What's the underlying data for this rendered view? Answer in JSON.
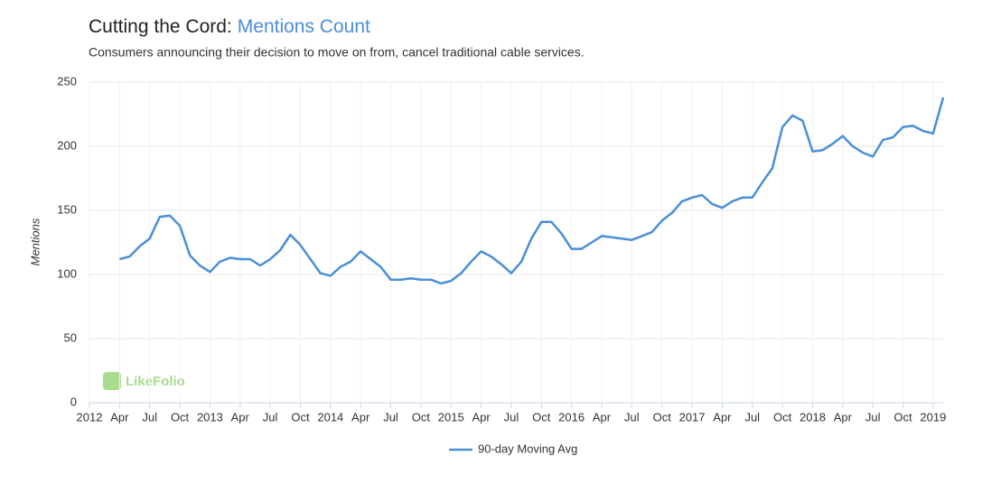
{
  "chart_data": {
    "type": "line",
    "title": "Cutting the Cord:",
    "title_highlight": "Mentions Count",
    "subtitle": "Consumers announcing their decision to move on from, cancel traditional cable services.",
    "y_label": "Mentions",
    "watermark": "LikeFolio",
    "x": [
      "2012-04",
      "2012-05",
      "2012-06",
      "2012-07",
      "2012-08",
      "2012-09",
      "2012-10",
      "2012-11",
      "2012-12",
      "2013-01",
      "2013-02",
      "2013-03",
      "2013-04",
      "2013-05",
      "2013-06",
      "2013-07",
      "2013-08",
      "2013-09",
      "2013-10",
      "2013-11",
      "2013-12",
      "2014-01",
      "2014-02",
      "2014-03",
      "2014-04",
      "2014-05",
      "2014-06",
      "2014-07",
      "2014-08",
      "2014-09",
      "2014-10",
      "2014-11",
      "2014-12",
      "2015-01",
      "2015-02",
      "2015-03",
      "2015-04",
      "2015-05",
      "2015-06",
      "2015-07",
      "2015-08",
      "2015-09",
      "2015-10",
      "2015-11",
      "2015-12",
      "2016-01",
      "2016-02",
      "2016-03",
      "2016-04",
      "2016-05",
      "2016-06",
      "2016-07",
      "2016-08",
      "2016-09",
      "2016-10",
      "2016-11",
      "2016-12",
      "2017-01",
      "2017-02",
      "2017-03",
      "2017-04",
      "2017-05",
      "2017-06",
      "2017-07",
      "2017-08",
      "2017-09",
      "2017-10",
      "2017-11",
      "2017-12",
      "2018-01",
      "2018-02",
      "2018-03",
      "2018-04",
      "2018-05",
      "2018-06",
      "2018-07",
      "2018-08",
      "2018-09",
      "2018-10",
      "2018-11",
      "2018-12",
      "2019-01",
      "2019-02"
    ],
    "series": [
      {
        "name": "90-day Moving Avg",
        "color": "#4a8fd8",
        "values": [
          112,
          114,
          122,
          128,
          145,
          146,
          138,
          115,
          107,
          102,
          110,
          113,
          112,
          112,
          107,
          112,
          119,
          131,
          123,
          112,
          101,
          99,
          106,
          110,
          118,
          112,
          106,
          96,
          96,
          97,
          96,
          96,
          93,
          95,
          101,
          110,
          118,
          114,
          108,
          101,
          110,
          128,
          141,
          141,
          132,
          120,
          120,
          125,
          130,
          129,
          128,
          127,
          130,
          133,
          142,
          148,
          157,
          160,
          162,
          155,
          152,
          157,
          160,
          160,
          172,
          183,
          215,
          224,
          220,
          196,
          197,
          202,
          208,
          200,
          195,
          192,
          205,
          207,
          215,
          216,
          212,
          210,
          238
        ]
      }
    ],
    "xlim": [
      "2012-01",
      "2019-02"
    ],
    "xticks": [
      {
        "value": "2012-01",
        "label": "2012"
      },
      {
        "value": "2012-04",
        "label": "Apr"
      },
      {
        "value": "2012-07",
        "label": "Jul"
      },
      {
        "value": "2012-10",
        "label": "Oct"
      },
      {
        "value": "2013-01",
        "label": "2013"
      },
      {
        "value": "2013-04",
        "label": "Apr"
      },
      {
        "value": "2013-07",
        "label": "Jul"
      },
      {
        "value": "2013-10",
        "label": "Oct"
      },
      {
        "value": "2014-01",
        "label": "2014"
      },
      {
        "value": "2014-04",
        "label": "Apr"
      },
      {
        "value": "2014-07",
        "label": "Jul"
      },
      {
        "value": "2014-10",
        "label": "Oct"
      },
      {
        "value": "2015-01",
        "label": "2015"
      },
      {
        "value": "2015-04",
        "label": "Apr"
      },
      {
        "value": "2015-07",
        "label": "Jul"
      },
      {
        "value": "2015-10",
        "label": "Oct"
      },
      {
        "value": "2016-01",
        "label": "2016"
      },
      {
        "value": "2016-04",
        "label": "Apr"
      },
      {
        "value": "2016-07",
        "label": "Jul"
      },
      {
        "value": "2016-10",
        "label": "Oct"
      },
      {
        "value": "2017-01",
        "label": "2017"
      },
      {
        "value": "2017-04",
        "label": "Apr"
      },
      {
        "value": "2017-07",
        "label": "Jul"
      },
      {
        "value": "2017-10",
        "label": "Oct"
      },
      {
        "value": "2018-01",
        "label": "2018"
      },
      {
        "value": "2018-04",
        "label": "Apr"
      },
      {
        "value": "2018-07",
        "label": "Jul"
      },
      {
        "value": "2018-10",
        "label": "Oct"
      },
      {
        "value": "2019-01",
        "label": "2019"
      }
    ],
    "ylim": [
      0,
      250
    ],
    "yticks": [
      0,
      50,
      100,
      150,
      200,
      250
    ],
    "grid": true
  }
}
